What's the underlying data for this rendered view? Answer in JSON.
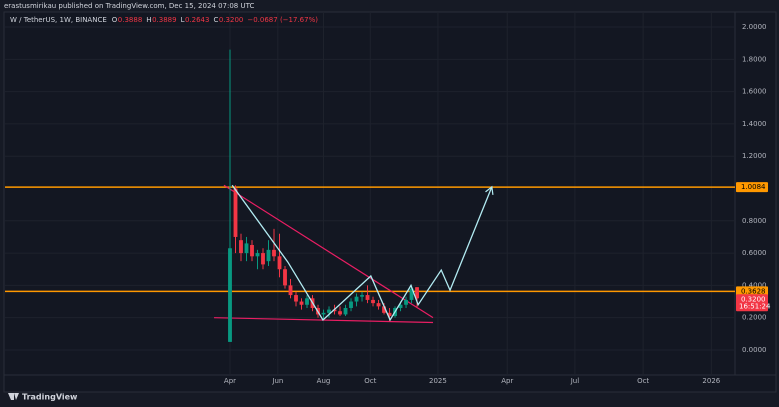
{
  "chart_data": {
    "type": "candlestick",
    "publisher": "erastusmirikau published on TradingView.com, Dec 15, 2024 07:08 UTC",
    "symbol": "W / TetherUS, 1W, BINANCE",
    "ohlc": [
      {
        "key": "O",
        "text": "0.3888"
      },
      {
        "key": "H",
        "text": "0.3889"
      },
      {
        "key": "L",
        "text": "0.2643"
      },
      {
        "key": "C",
        "text": "0.3200"
      }
    ],
    "change": "−0.0687 (−17.67%)",
    "brand": "TradingView",
    "up_color": "#089981",
    "down_color": "#f23645",
    "grid": true,
    "ylim": [
      -0.155,
      2.093
    ],
    "yticks": [
      {
        "value": 0,
        "label": "0.0000"
      },
      {
        "value": 0.2,
        "label": "0.2000"
      },
      {
        "value": 0.4,
        "label": "0.4000"
      },
      {
        "value": 0.6,
        "label": "0.6000"
      },
      {
        "value": 0.8,
        "label": "0.8000"
      },
      {
        "value": 1.2,
        "label": "1.2000"
      },
      {
        "value": 1.4,
        "label": "1.4000"
      },
      {
        "value": 1.6,
        "label": "1.6000"
      },
      {
        "value": 1.8,
        "label": "1.8000"
      },
      {
        "value": 2,
        "label": "2.0000"
      }
    ],
    "xlim": [
      -40.9,
      91.8
    ],
    "xticks": [
      {
        "value": 0,
        "label": "Apr"
      },
      {
        "value": 8.7,
        "label": "Jun"
      },
      {
        "value": 17,
        "label": "Aug"
      },
      {
        "value": 25.5,
        "label": "Oct"
      },
      {
        "value": 37.8,
        "label": "2025"
      },
      {
        "value": 50.4,
        "label": "Apr"
      },
      {
        "value": 62.7,
        "label": "Jul"
      },
      {
        "value": 75.1,
        "label": "Oct"
      },
      {
        "value": 87.5,
        "label": "2026"
      }
    ],
    "candles": {
      "x": [
        0,
        1,
        2,
        3,
        4,
        5,
        6,
        7,
        8,
        9,
        10,
        11,
        12,
        13,
        14,
        15,
        16,
        17,
        18,
        19,
        20,
        21,
        22,
        23,
        24,
        25,
        26,
        27,
        28,
        29,
        30,
        31,
        32,
        33,
        34
      ],
      "open": [
        0.05,
        1.0,
        0.68,
        0.6,
        0.65,
        0.58,
        0.6,
        0.55,
        0.62,
        0.58,
        0.5,
        0.4,
        0.34,
        0.3,
        0.28,
        0.32,
        0.26,
        0.22,
        0.23,
        0.25,
        0.24,
        0.22,
        0.26,
        0.3,
        0.33,
        0.34,
        0.31,
        0.29,
        0.27,
        0.23,
        0.21,
        0.26,
        0.28,
        0.31,
        0.3888
      ],
      "high": [
        1.86,
        1.02,
        0.72,
        0.7,
        0.68,
        0.62,
        0.63,
        0.68,
        0.75,
        0.72,
        0.52,
        0.44,
        0.36,
        0.32,
        0.34,
        0.34,
        0.28,
        0.25,
        0.27,
        0.28,
        0.27,
        0.28,
        0.32,
        0.35,
        0.36,
        0.4,
        0.33,
        0.31,
        0.29,
        0.26,
        0.27,
        0.3,
        0.33,
        0.4,
        0.3889
      ],
      "low": [
        0.05,
        0.6,
        0.55,
        0.55,
        0.55,
        0.5,
        0.5,
        0.52,
        0.55,
        0.45,
        0.38,
        0.32,
        0.27,
        0.25,
        0.26,
        0.24,
        0.2,
        0.19,
        0.2,
        0.22,
        0.21,
        0.21,
        0.24,
        0.27,
        0.3,
        0.29,
        0.27,
        0.25,
        0.22,
        0.18,
        0.2,
        0.24,
        0.26,
        0.29,
        0.2643
      ],
      "close": [
        0.63,
        0.7,
        0.6,
        0.66,
        0.58,
        0.6,
        0.53,
        0.62,
        0.58,
        0.5,
        0.4,
        0.34,
        0.3,
        0.28,
        0.32,
        0.26,
        0.22,
        0.23,
        0.25,
        0.24,
        0.22,
        0.26,
        0.3,
        0.33,
        0.34,
        0.31,
        0.29,
        0.27,
        0.23,
        0.21,
        0.26,
        0.28,
        0.31,
        0.38,
        0.32
      ]
    },
    "hlines": [
      {
        "value": 1.0084,
        "color": "#ff9800",
        "label": "1.0084"
      },
      {
        "value": 0.3628,
        "color": "#ff9800",
        "label": "0.3628"
      }
    ],
    "last_price": {
      "value": 0.32,
      "label": "0.3200",
      "countdown": "16:51:24"
    },
    "trendlines": [
      {
        "color": "#e91e63",
        "x": [
          -1.1,
          36.9
        ],
        "y": [
          1.02,
          0.2
        ]
      },
      {
        "color": "#e91e63",
        "x": [
          -2.9,
          36.9
        ],
        "y": [
          0.2,
          0.17
        ]
      }
    ],
    "projection": {
      "color": "#b2ebf2",
      "x": [
        0.4,
        10.5,
        16.9,
        25.6,
        29.1,
        32.9,
        34.2,
        38.4,
        40,
        47.6
      ],
      "y": [
        1.02,
        0.545,
        0.186,
        0.458,
        0.186,
        0.4,
        0.28,
        0.495,
        0.37,
        1.01
      ]
    }
  }
}
